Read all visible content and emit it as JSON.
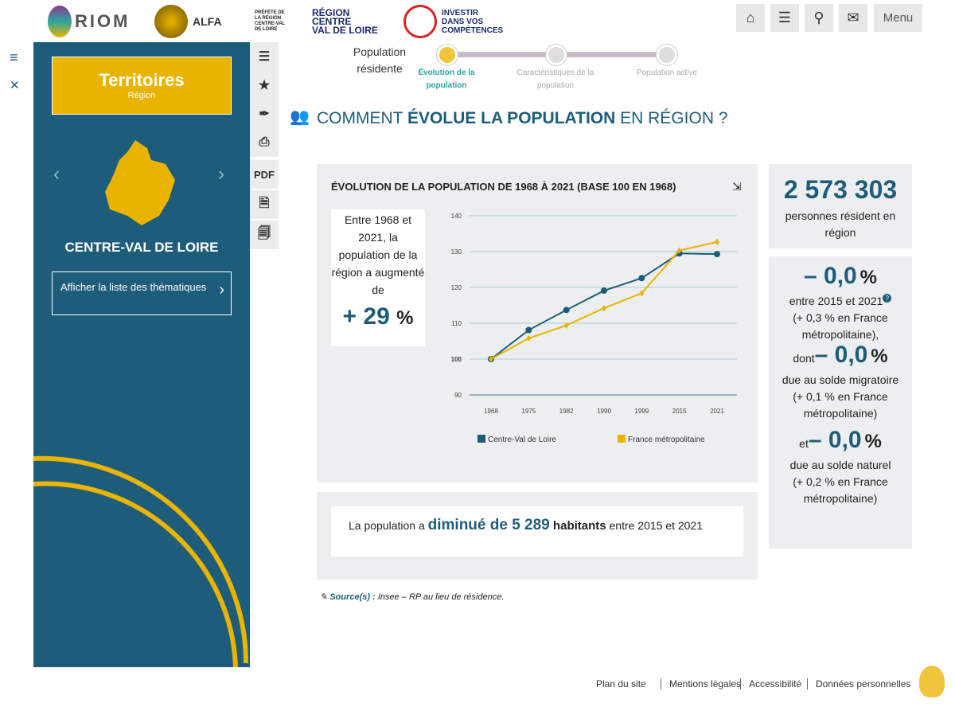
{
  "header": {
    "logos": [
      "ORIOM",
      "ALFA",
      "Préfète de la région Centre-Val de Loire",
      "Région Centre Val de Loire",
      "Investir dans vos compétences"
    ],
    "menu_label": "Menu",
    "icons": [
      "home-icon",
      "checklist-icon",
      "search-icon",
      "mail-icon"
    ]
  },
  "sidebar": {
    "title": "Territoires",
    "subtitle": "Région",
    "region_name": "CENTRE-VAL DE LOIRE",
    "list_button": "Afficher la liste des thématiques"
  },
  "tools": [
    "list-icon",
    "star-icon",
    "pen-icon",
    "print-icon",
    "PDF",
    "zip-file-icon",
    "zip-files-icon"
  ],
  "stepper": {
    "section": "Population résidente",
    "steps": [
      {
        "label": "Évolution de la population",
        "active": true
      },
      {
        "label": "Caractéristiques de la population",
        "active": false
      },
      {
        "label": "Population active",
        "active": false
      }
    ]
  },
  "page": {
    "title_pre": "COMMENT ",
    "title_bold": "ÉVOLUE LA POPULATION",
    "title_post": " EN RÉGION ?"
  },
  "chart_card": {
    "title": "ÉVOLUTION DE LA POPULATION DE 1968 À 2021 (BASE 100 EN 1968)",
    "summary": "Entre 1968 et 2021, la population de la région a augmenté de",
    "summary_value": "+ 29",
    "summary_unit": "%"
  },
  "chart_data": {
    "type": "line",
    "title": "ÉVOLUTION DE LA POPULATION DE 1968 À 2021 (BASE 100 EN 1968)",
    "categories": [
      "1968",
      "1975",
      "1982",
      "1990",
      "1999",
      "2015",
      "2021"
    ],
    "ylim": [
      90,
      140
    ],
    "yticks": [
      "90",
      "100",
      "110",
      "120",
      "130",
      "140"
    ],
    "grid": true,
    "legend": "bottom",
    "series": [
      {
        "name": "Centre-Val de Loire",
        "color": "#1e5d7a",
        "values": [
          100,
          108.1,
          113.7,
          119.1,
          122.6,
          129.5,
          129.3
        ]
      },
      {
        "name": "France métropolitaine",
        "color": "#e8b400",
        "values": [
          100,
          105.8,
          109.4,
          114.2,
          118.4,
          130.3,
          132.7
        ]
      }
    ]
  },
  "bottom_card": {
    "pre": "La population a ",
    "value": "diminué de 5 289",
    "bold": " habitants",
    "post": " entre 2015 et 2021"
  },
  "stats": {
    "population": "2 573 303",
    "population_text": "personnes résident en région",
    "var1": "– 0,0",
    "pct": "%",
    "var1_text": "entre 2015 et 2021",
    "var1_france": "(+ 0,3 % en France métropolitaine),",
    "dont": "dont",
    "var2": "– 0,0",
    "var2_text": "due au solde migratoire",
    "var2_france": "(+ 0,1 % en France métropolitaine)",
    "et": "et",
    "var3": "– 0,0",
    "var3_text": "due au solde naturel",
    "var3_france": "(+ 0,2 % en France métropolitaine)"
  },
  "source": {
    "label": "Source(s) :",
    "text": "Insee – RP au lieu de résidence."
  },
  "footer": [
    "Plan du site",
    "Mentions légales",
    "Accessibilité",
    "Données personnelles"
  ]
}
